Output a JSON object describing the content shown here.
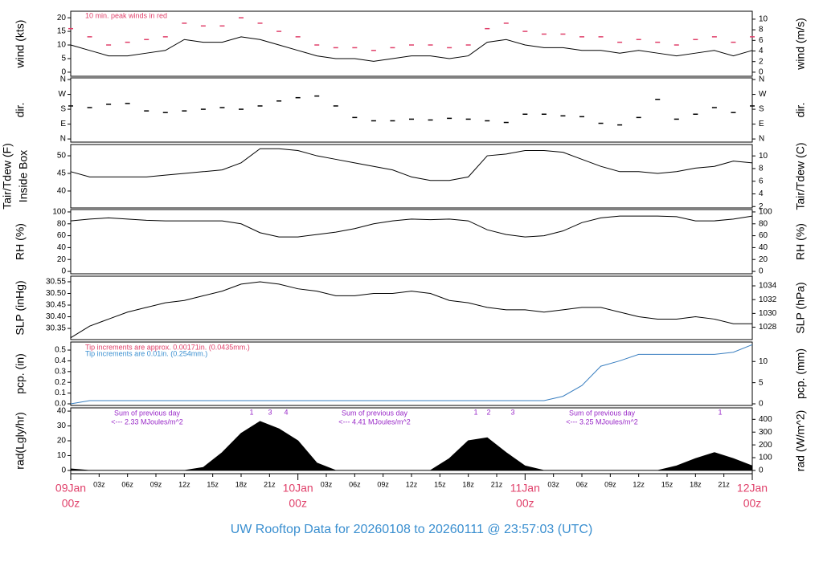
{
  "title": "UW Rooftop Data for 20260108  to  20260111 @ 23:57:03  (UTC)",
  "time_axis": {
    "xlim": [
      0,
      72
    ],
    "x": [
      0,
      2,
      4,
      6,
      8,
      10,
      12,
      14,
      16,
      18,
      20,
      22,
      24,
      26,
      28,
      30,
      32,
      34,
      36,
      38,
      40,
      42,
      44,
      46,
      48,
      50,
      52,
      54,
      56,
      58,
      60,
      62,
      64,
      66,
      68,
      70,
      72
    ],
    "xticks": [
      {
        "value": 3,
        "label": "03z"
      },
      {
        "value": 6,
        "label": "06z"
      },
      {
        "value": 9,
        "label": "09z"
      },
      {
        "value": 12,
        "label": "12z"
      },
      {
        "value": 15,
        "label": "15z"
      },
      {
        "value": 18,
        "label": "18z"
      },
      {
        "value": 21,
        "label": "21z"
      },
      {
        "value": 27,
        "label": "03z"
      },
      {
        "value": 30,
        "label": "06z"
      },
      {
        "value": 33,
        "label": "09z"
      },
      {
        "value": 36,
        "label": "12z"
      },
      {
        "value": 39,
        "label": "15z"
      },
      {
        "value": 42,
        "label": "18z"
      },
      {
        "value": 45,
        "label": "21z"
      },
      {
        "value": 51,
        "label": "03z"
      },
      {
        "value": 54,
        "label": "06z"
      },
      {
        "value": 57,
        "label": "09z"
      },
      {
        "value": 60,
        "label": "12z"
      },
      {
        "value": 63,
        "label": "15z"
      },
      {
        "value": 66,
        "label": "18z"
      },
      {
        "value": 69,
        "label": "21z"
      }
    ],
    "date_ticks": [
      {
        "value": 0,
        "label": "09Jan",
        "sublabel": "00z"
      },
      {
        "value": 24,
        "label": "10Jan",
        "sublabel": "00z"
      },
      {
        "value": 48,
        "label": "11Jan",
        "sublabel": "00z"
      },
      {
        "value": 72,
        "label": "12Jan",
        "sublabel": "00z"
      }
    ]
  },
  "chart_data": [
    {
      "type": "line",
      "ylabel": "wind (kts)",
      "y2label": "wind (m/s)",
      "annotation": "10 min. peak winds in red",
      "ylim": [
        -1.5,
        22.4
      ],
      "yticks": [
        0,
        5,
        10,
        15,
        20
      ],
      "y2lim": [
        -0.77,
        11.5
      ],
      "y2ticks": [
        0,
        2,
        4,
        6,
        8,
        10
      ],
      "series": [
        {
          "color": "#000000",
          "values": [
            10,
            8,
            6,
            6,
            7,
            8,
            12,
            11,
            11,
            13,
            12,
            10,
            8,
            6,
            5,
            5,
            4,
            5,
            6,
            6,
            5,
            6,
            11,
            12,
            10,
            9,
            9,
            8,
            8,
            7,
            8,
            7,
            6,
            7,
            8,
            6,
            8
          ]
        },
        {
          "color": "#e0406a",
          "marker": "dash",
          "values": [
            16,
            13,
            10,
            11,
            12,
            13,
            18,
            17,
            17,
            20,
            18,
            15,
            13,
            10,
            9,
            9,
            8,
            9,
            10,
            10,
            9,
            10,
            16,
            18,
            15,
            14,
            14,
            13,
            13,
            11,
            12,
            11,
            10,
            12,
            13,
            11,
            13
          ]
        }
      ]
    },
    {
      "type": "scatter",
      "ylabel": "dir.",
      "y2label": "dir.",
      "ylim": [
        -19,
        370
      ],
      "yticks": [
        {
          "value": 360,
          "label": "N"
        },
        {
          "value": 270,
          "label": "W"
        },
        {
          "value": 180,
          "label": "S"
        },
        {
          "value": 90,
          "label": "E"
        },
        {
          "value": 0,
          "label": "N"
        }
      ],
      "y2lim": [
        -19,
        370
      ],
      "y2ticks": [
        {
          "value": 360,
          "label": "N"
        },
        {
          "value": 270,
          "label": "W"
        },
        {
          "value": 180,
          "label": "S"
        },
        {
          "value": 90,
          "label": "E"
        },
        {
          "value": 0,
          "label": "N"
        }
      ],
      "series": [
        {
          "color": "#000000",
          "marker": "dash",
          "values": [
            200,
            190,
            210,
            215,
            170,
            160,
            170,
            180,
            190,
            180,
            200,
            230,
            250,
            260,
            200,
            130,
            110,
            110,
            120,
            115,
            125,
            120,
            110,
            100,
            150,
            150,
            140,
            135,
            95,
            85,
            130,
            240,
            120,
            150,
            190,
            160,
            200
          ]
        }
      ]
    },
    {
      "type": "line",
      "ylabel": "Tair/Tdew (F)",
      "ylabel2": "Inside Box",
      "y2label": "Tair/Tdew (C)",
      "ylim": [
        35.2,
        53.2
      ],
      "yticks": [
        40,
        45,
        50
      ],
      "y2lim": [
        1.78,
        11.8
      ],
      "y2ticks": [
        2,
        4,
        6,
        8,
        10
      ],
      "series": [
        {
          "color": "#000000",
          "values": [
            45.5,
            44,
            44,
            44,
            44,
            44.5,
            45,
            45.5,
            46,
            48,
            52,
            52,
            51.5,
            50,
            49,
            48,
            47,
            46,
            44,
            43,
            43,
            44,
            50,
            50.5,
            51.5,
            51.5,
            51,
            49,
            47,
            45.5,
            45.5,
            45,
            45.5,
            46.5,
            47,
            48.5,
            48
          ]
        }
      ]
    },
    {
      "type": "line",
      "ylabel": "RH (%)",
      "y2label": "RH (%)",
      "ylim": [
        -4,
        104
      ],
      "yticks": [
        0,
        20,
        40,
        60,
        80,
        100
      ],
      "y2lim": [
        -4,
        104
      ],
      "y2ticks": [
        0,
        20,
        40,
        60,
        80,
        100
      ],
      "series": [
        {
          "color": "#000000",
          "values": [
            85,
            88,
            90,
            88,
            86,
            85,
            85,
            85,
            85,
            80,
            65,
            58,
            58,
            62,
            66,
            72,
            80,
            85,
            88,
            87,
            88,
            85,
            70,
            62,
            58,
            60,
            68,
            82,
            90,
            93,
            93,
            93,
            92,
            85,
            85,
            88,
            93
          ]
        }
      ]
    },
    {
      "type": "line",
      "ylabel": "SLP (inHg)",
      "y2label": "SLP (hPa)",
      "ylim": [
        30.302,
        30.574
      ],
      "yticks": [
        {
          "value": 30.35,
          "label": "30.35"
        },
        {
          "value": 30.4,
          "label": "30.40"
        },
        {
          "value": 30.45,
          "label": "30.45"
        },
        {
          "value": 30.5,
          "label": "30.50"
        },
        {
          "value": 30.55,
          "label": "30.55"
        }
      ],
      "y2lim": [
        1026.2,
        1035.4
      ],
      "y2ticks": [
        1028,
        1030,
        1032,
        1034
      ],
      "series": [
        {
          "color": "#000000",
          "values": [
            30.31,
            30.36,
            30.39,
            30.42,
            30.44,
            30.46,
            30.47,
            30.49,
            30.51,
            30.54,
            30.55,
            30.54,
            30.52,
            30.51,
            30.49,
            30.49,
            30.5,
            30.5,
            30.51,
            30.5,
            30.47,
            30.46,
            30.44,
            30.43,
            30.43,
            30.42,
            30.43,
            30.44,
            30.44,
            30.42,
            30.4,
            30.39,
            30.39,
            30.4,
            30.39,
            30.37,
            30.37
          ]
        }
      ]
    },
    {
      "type": "line",
      "ylabel": "pcp. (in)",
      "y2label": "pcp. (mm)",
      "annotations": [
        {
          "text": "Tip increments are approx. 0.00171in. (0.0435mm.)",
          "color": "#e0406a"
        },
        {
          "text": "Tip increments are 0.01in. (0.254mm.)",
          "color": "#3a8fd0"
        }
      ],
      "ylim": [
        -0.015,
        0.575
      ],
      "yticks": [
        {
          "value": 0,
          "label": "0.0"
        },
        {
          "value": 0.1,
          "label": "0.1"
        },
        {
          "value": 0.2,
          "label": "0.2"
        },
        {
          "value": 0.3,
          "label": "0.3"
        },
        {
          "value": 0.4,
          "label": "0.4"
        },
        {
          "value": 0.5,
          "label": "0.5"
        }
      ],
      "y2lim": [
        -0.38,
        14.6
      ],
      "y2ticks": [
        0,
        5,
        10
      ],
      "series": [
        {
          "color": "#3a7fc0",
          "values": [
            0,
            0.03,
            0.03,
            0.03,
            0.03,
            0.03,
            0.03,
            0.03,
            0.03,
            0.03,
            0.03,
            0.03,
            0.03,
            0.03,
            0.03,
            0.03,
            0.03,
            0.03,
            0.03,
            0.03,
            0.03,
            0.03,
            0.03,
            0.03,
            0.03,
            0.03,
            0.07,
            0.17,
            0.35,
            0.4,
            0.46,
            0.46,
            0.46,
            0.46,
            0.46,
            0.48,
            0.55
          ]
        }
      ]
    },
    {
      "type": "area",
      "ylabel": "rad(Lgly/hr)",
      "y2label": "rad (W/m^2)",
      "annotations": [
        "Sum of previous day",
        "<--- 2.33 MJoules/m^2",
        "Sum of previous day",
        "<--- 4.41 MJoules/m^2",
        "Sum of previous day",
        "<--- 3.25 MJoules/m^2"
      ],
      "peak_labels": [
        "1",
        "3",
        "4",
        "1",
        "2",
        "3",
        "1"
      ],
      "ylim": [
        -2.2,
        42.2
      ],
      "yticks": [
        0,
        10,
        20,
        30,
        40
      ],
      "y2lim": [
        -25.6,
        490
      ],
      "y2ticks": [
        0,
        100,
        200,
        300,
        400
      ],
      "series": [
        {
          "color": "#000000",
          "values": [
            1,
            0,
            0,
            0,
            0,
            0,
            0,
            2,
            12,
            25,
            33,
            28,
            20,
            5,
            0,
            0,
            0,
            0,
            0,
            0,
            8,
            20,
            22,
            12,
            3,
            0,
            0,
            0,
            0,
            0,
            0,
            0,
            3,
            8,
            12,
            8,
            3
          ]
        }
      ]
    }
  ]
}
